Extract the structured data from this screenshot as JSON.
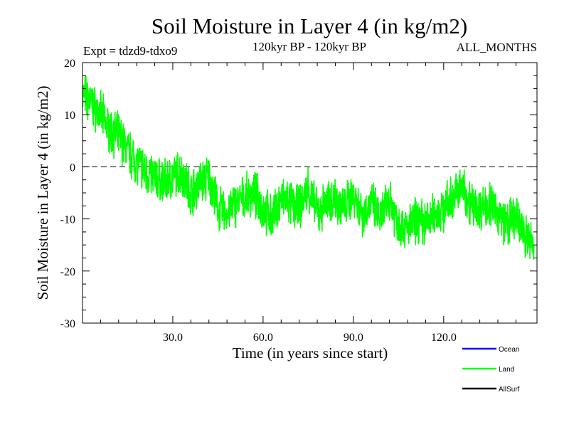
{
  "chart_data": {
    "type": "line",
    "title": "Soil Moisture in Layer 4 (in kg/m2)",
    "subtitle_left": "Expt = tdzd9-tdxo9",
    "subtitle_center": "120kyr BP - 120kyr BP",
    "subtitle_right": "ALL_MONTHS",
    "xlabel": "Time (in years since start)",
    "ylabel": "Soil Moisture in Layer 4 (in kg/m2)",
    "xlim": [
      0,
      151
    ],
    "ylim": [
      -30,
      20
    ],
    "x_ticks": [
      30,
      60,
      90,
      120
    ],
    "x_tick_labels": [
      "30.0",
      "60.0",
      "90.0",
      "120.0"
    ],
    "y_ticks": [
      -30,
      -20,
      -10,
      0,
      10,
      20
    ],
    "y_tick_labels": [
      "-30",
      "-20",
      "-10",
      "0",
      "10",
      "20"
    ],
    "reference_line": 0,
    "legend_placement": "bottom-right",
    "legend": [
      {
        "name": "Ocean",
        "color": "#0000ff"
      },
      {
        "name": "Land",
        "color": "#00ff00"
      },
      {
        "name": "AllSurf",
        "color": "#000000"
      }
    ],
    "series": [
      {
        "name": "Land",
        "color": "#00ff00",
        "x": [
          0,
          3,
          6,
          9,
          12,
          15,
          18,
          21,
          24,
          27,
          30,
          33,
          36,
          39,
          42,
          45,
          48,
          51,
          54,
          57,
          60,
          63,
          66,
          69,
          72,
          75,
          78,
          81,
          84,
          87,
          90,
          93,
          96,
          99,
          102,
          105,
          108,
          111,
          114,
          117,
          120,
          123,
          126,
          129,
          132,
          135,
          138,
          141,
          144,
          147,
          150
        ],
        "y": [
          14,
          12,
          10,
          7,
          6,
          3,
          1,
          -1,
          -2,
          -3,
          -2,
          -1,
          -5,
          -3,
          -2,
          -8,
          -9,
          -7,
          -6,
          -5,
          -8,
          -10,
          -6,
          -7,
          -8,
          -4,
          -9,
          -7,
          -6,
          -8,
          -5,
          -9,
          -7,
          -10,
          -6,
          -11,
          -12,
          -10,
          -11,
          -9,
          -8,
          -6,
          -4,
          -7,
          -8,
          -7,
          -9,
          -11,
          -10,
          -13,
          -15
        ]
      },
      {
        "name": "Ocean",
        "color": "#0000ff",
        "x": [],
        "y": []
      },
      {
        "name": "AllSurf",
        "color": "#000000",
        "x": [],
        "y": []
      }
    ]
  }
}
